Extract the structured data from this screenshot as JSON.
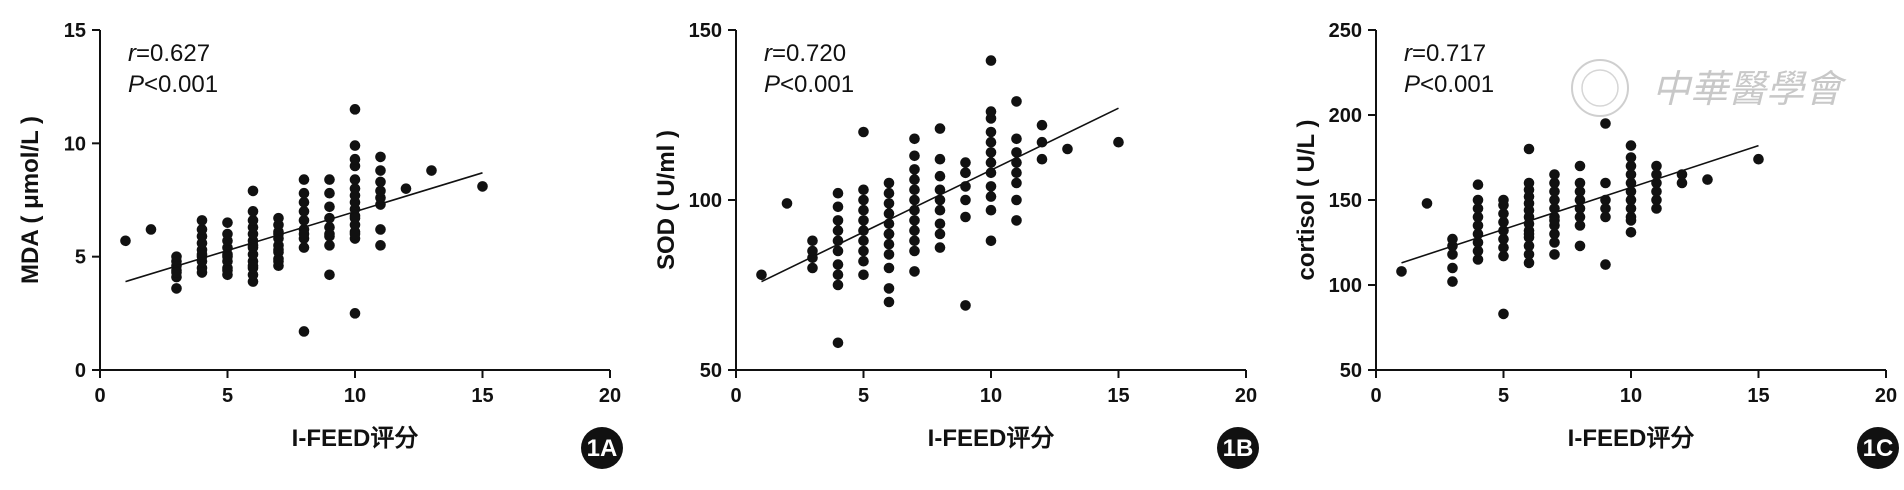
{
  "watermark": {
    "text": "中華醫學會"
  },
  "chart_data": [
    {
      "type": "scatter",
      "panel_label": "1A",
      "xlabel": "I-FEED评分",
      "ylabel": "MDA ( μmol/L )",
      "xlim": [
        0,
        20
      ],
      "ylim": [
        0,
        15
      ],
      "xticks": [
        0,
        5,
        10,
        15,
        20
      ],
      "yticks": [
        0,
        5,
        10,
        15
      ],
      "annotation": {
        "r_symbol": "r",
        "r_text": "=0.627",
        "p_symbol": "P",
        "p_text": "<0.001"
      },
      "trend": {
        "x": [
          1,
          15
        ],
        "y": [
          3.9,
          8.7
        ]
      },
      "points": {
        "x": [
          1,
          2,
          3,
          3,
          3,
          3,
          3,
          3,
          3,
          4,
          4,
          4,
          4,
          4,
          4,
          4,
          4,
          4,
          4,
          5,
          5,
          5,
          5,
          5,
          5,
          5,
          5,
          5,
          5,
          6,
          6,
          6,
          6,
          6,
          6,
          6,
          6,
          6,
          6,
          6,
          6,
          6,
          6,
          7,
          7,
          7,
          7,
          7,
          7,
          7,
          7,
          7,
          7,
          7,
          8,
          8,
          8,
          8,
          8,
          8,
          8,
          8,
          8,
          8,
          9,
          9,
          9,
          9,
          9,
          9,
          9,
          9,
          9,
          10,
          10,
          10,
          10,
          10,
          10,
          10,
          10,
          10,
          10,
          10,
          10,
          10,
          10,
          10,
          10,
          11,
          11,
          11,
          11,
          11,
          11,
          11,
          11,
          12,
          13,
          15
        ],
        "y": [
          5.7,
          6.2,
          3.6,
          4.1,
          4.4,
          4.6,
          4.8,
          5.0,
          4.3,
          4.5,
          4.8,
          5.0,
          5.3,
          5.6,
          5.9,
          6.2,
          6.6,
          4.3,
          5.1,
          4.2,
          4.5,
          4.8,
          5.1,
          5.4,
          5.7,
          6.0,
          6.5,
          5.0,
          4.4,
          3.9,
          4.2,
          4.5,
          4.8,
          5.1,
          5.4,
          5.7,
          6.0,
          6.3,
          6.6,
          7.0,
          7.9,
          4.6,
          5.5,
          4.6,
          4.9,
          5.2,
          5.5,
          5.8,
          6.1,
          6.4,
          6.7,
          4.8,
          5.3,
          6.0,
          1.7,
          5.8,
          6.2,
          6.6,
          7.0,
          7.4,
          7.8,
          8.4,
          5.4,
          6.0,
          4.2,
          5.5,
          5.9,
          6.3,
          6.7,
          7.2,
          7.8,
          8.4,
          6.0,
          2.5,
          5.8,
          6.1,
          6.4,
          6.8,
          7.1,
          7.4,
          7.7,
          8.0,
          8.4,
          9.0,
          9.3,
          9.9,
          11.5,
          6.0,
          6.7,
          5.5,
          6.2,
          7.3,
          7.6,
          7.9,
          8.3,
          8.8,
          9.4,
          8.0,
          8.8,
          8.1
        ]
      }
    },
    {
      "type": "scatter",
      "panel_label": "1B",
      "xlabel": "I-FEED评分",
      "ylabel": "SOD ( U/ml )",
      "xlim": [
        0,
        20
      ],
      "ylim": [
        50,
        150
      ],
      "xticks": [
        0,
        5,
        10,
        15,
        20
      ],
      "yticks": [
        50,
        100,
        150
      ],
      "annotation": {
        "r_symbol": "r",
        "r_text": "=0.720",
        "p_symbol": "P",
        "p_text": "<0.001"
      },
      "trend": {
        "x": [
          1,
          15
        ],
        "y": [
          76,
          127
        ]
      },
      "points": {
        "x": [
          1,
          2,
          3,
          3,
          3,
          3,
          4,
          4,
          4,
          4,
          4,
          4,
          4,
          4,
          4,
          4,
          5,
          5,
          5,
          5,
          5,
          5,
          5,
          5,
          5,
          5,
          6,
          6,
          6,
          6,
          6,
          6,
          6,
          6,
          6,
          6,
          6,
          6,
          7,
          7,
          7,
          7,
          7,
          7,
          7,
          7,
          7,
          7,
          7,
          7,
          8,
          8,
          8,
          8,
          8,
          8,
          8,
          8,
          8,
          9,
          9,
          9,
          9,
          9,
          9,
          9,
          10,
          10,
          10,
          10,
          10,
          10,
          10,
          10,
          10,
          10,
          10,
          10,
          11,
          11,
          11,
          11,
          11,
          11,
          11,
          11,
          12,
          12,
          12,
          13,
          15
        ],
        "y": [
          78,
          99,
          80,
          83,
          85,
          88,
          58,
          75,
          78,
          81,
          85,
          88,
          91,
          94,
          98,
          102,
          78,
          82,
          85,
          88,
          91,
          94,
          97,
          100,
          103,
          120,
          70,
          74,
          80,
          84,
          87,
          90,
          93,
          96,
          99,
          102,
          105,
          90,
          79,
          85,
          88,
          91,
          94,
          97,
          100,
          103,
          106,
          109,
          113,
          118,
          86,
          90,
          93,
          97,
          100,
          103,
          107,
          112,
          121,
          69,
          95,
          100,
          104,
          108,
          111,
          108,
          88,
          97,
          101,
          104,
          108,
          111,
          114,
          117,
          120,
          124,
          126,
          141,
          94,
          100,
          105,
          108,
          111,
          114,
          118,
          129,
          112,
          117,
          122,
          115,
          117
        ]
      }
    },
    {
      "type": "scatter",
      "panel_label": "1C",
      "xlabel": "I-FEED评分",
      "ylabel": "cortisol ( U/L )",
      "xlim": [
        0,
        20
      ],
      "ylim": [
        50,
        250
      ],
      "xticks": [
        0,
        5,
        10,
        15,
        20
      ],
      "yticks": [
        50,
        100,
        150,
        200,
        250
      ],
      "annotation": {
        "r_symbol": "r",
        "r_text": "=0.717",
        "p_symbol": "P",
        "p_text": "<0.001"
      },
      "trend": {
        "x": [
          1,
          15
        ],
        "y": [
          113,
          182
        ]
      },
      "points": {
        "x": [
          1,
          2,
          3,
          3,
          3,
          3,
          3,
          4,
          4,
          4,
          4,
          4,
          4,
          4,
          4,
          4,
          5,
          5,
          5,
          5,
          5,
          5,
          5,
          5,
          5,
          6,
          6,
          6,
          6,
          6,
          6,
          6,
          6,
          6,
          6,
          6,
          6,
          6,
          6,
          7,
          7,
          7,
          7,
          7,
          7,
          7,
          7,
          7,
          7,
          7,
          8,
          8,
          8,
          8,
          8,
          8,
          8,
          8,
          9,
          9,
          9,
          9,
          9,
          9,
          10,
          10,
          10,
          10,
          10,
          10,
          10,
          10,
          10,
          10,
          10,
          11,
          11,
          11,
          11,
          11,
          11,
          12,
          12,
          13,
          15
        ],
        "y": [
          108,
          148,
          102,
          110,
          118,
          123,
          127,
          115,
          120,
          125,
          130,
          135,
          140,
          145,
          150,
          159,
          83,
          117,
          122,
          127,
          132,
          137,
          142,
          147,
          150,
          113,
          118,
          123,
          128,
          132,
          136,
          140,
          144,
          148,
          152,
          156,
          160,
          180,
          130,
          118,
          125,
          130,
          135,
          140,
          145,
          150,
          155,
          160,
          165,
          138,
          123,
          135,
          140,
          145,
          150,
          155,
          160,
          170,
          112,
          140,
          145,
          150,
          160,
          195,
          131,
          140,
          145,
          150,
          155,
          160,
          165,
          170,
          175,
          182,
          138,
          145,
          150,
          155,
          160,
          165,
          170,
          160,
          165,
          162,
          174
        ]
      }
    }
  ]
}
